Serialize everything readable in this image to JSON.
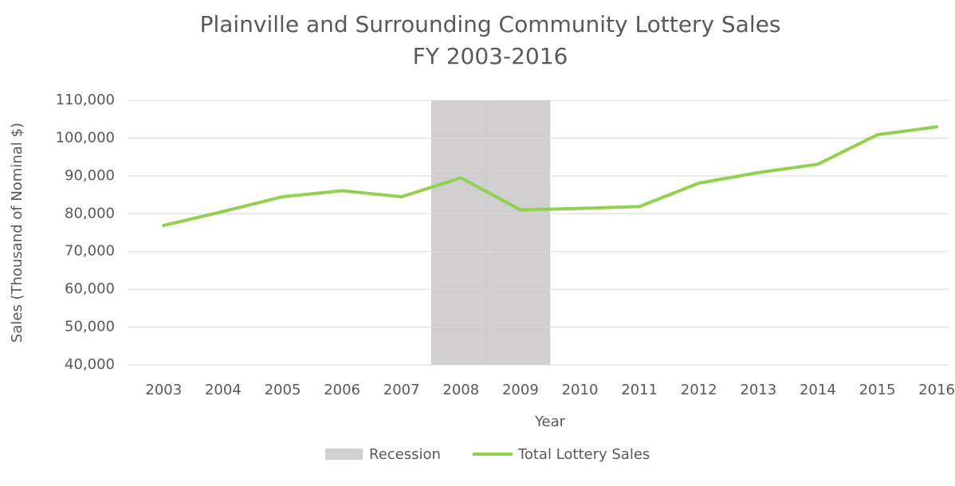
{
  "chart_data": {
    "type": "line",
    "title": "Plainville and Surrounding Community Lottery Sales",
    "subtitle": "FY 2003-2016",
    "x_label": "Year",
    "y_label": "Sales (Thousand of Nominal $)",
    "categories": [
      "2003",
      "2004",
      "2005",
      "2006",
      "2007",
      "2008",
      "2009",
      "2010",
      "2011",
      "2012",
      "2013",
      "2014",
      "2015",
      "2016"
    ],
    "series": [
      {
        "name": "Recession",
        "type": "bar",
        "color": "#d0cece",
        "values": [
          null,
          null,
          null,
          null,
          null,
          110000,
          110000,
          null,
          null,
          null,
          null,
          null,
          null,
          null
        ]
      },
      {
        "name": "Total Lottery Sales",
        "type": "line",
        "color": "#92d050",
        "values": [
          76900,
          80600,
          84500,
          86100,
          84500,
          89500,
          81000,
          81400,
          81900,
          88100,
          90900,
          93100,
          100900,
          103000
        ]
      }
    ],
    "ylim": [
      40000,
      110000
    ],
    "yticks": [
      {
        "value": 40000,
        "label": "40,000"
      },
      {
        "value": 50000,
        "label": "50,000"
      },
      {
        "value": 60000,
        "label": "60,000"
      },
      {
        "value": 70000,
        "label": "70,000"
      },
      {
        "value": 80000,
        "label": "80,000"
      },
      {
        "value": 90000,
        "label": "90,000"
      },
      {
        "value": 100000,
        "label": "100,000"
      },
      {
        "value": 110000,
        "label": "110,000"
      }
    ],
    "grid": true,
    "legend": "bottom"
  }
}
